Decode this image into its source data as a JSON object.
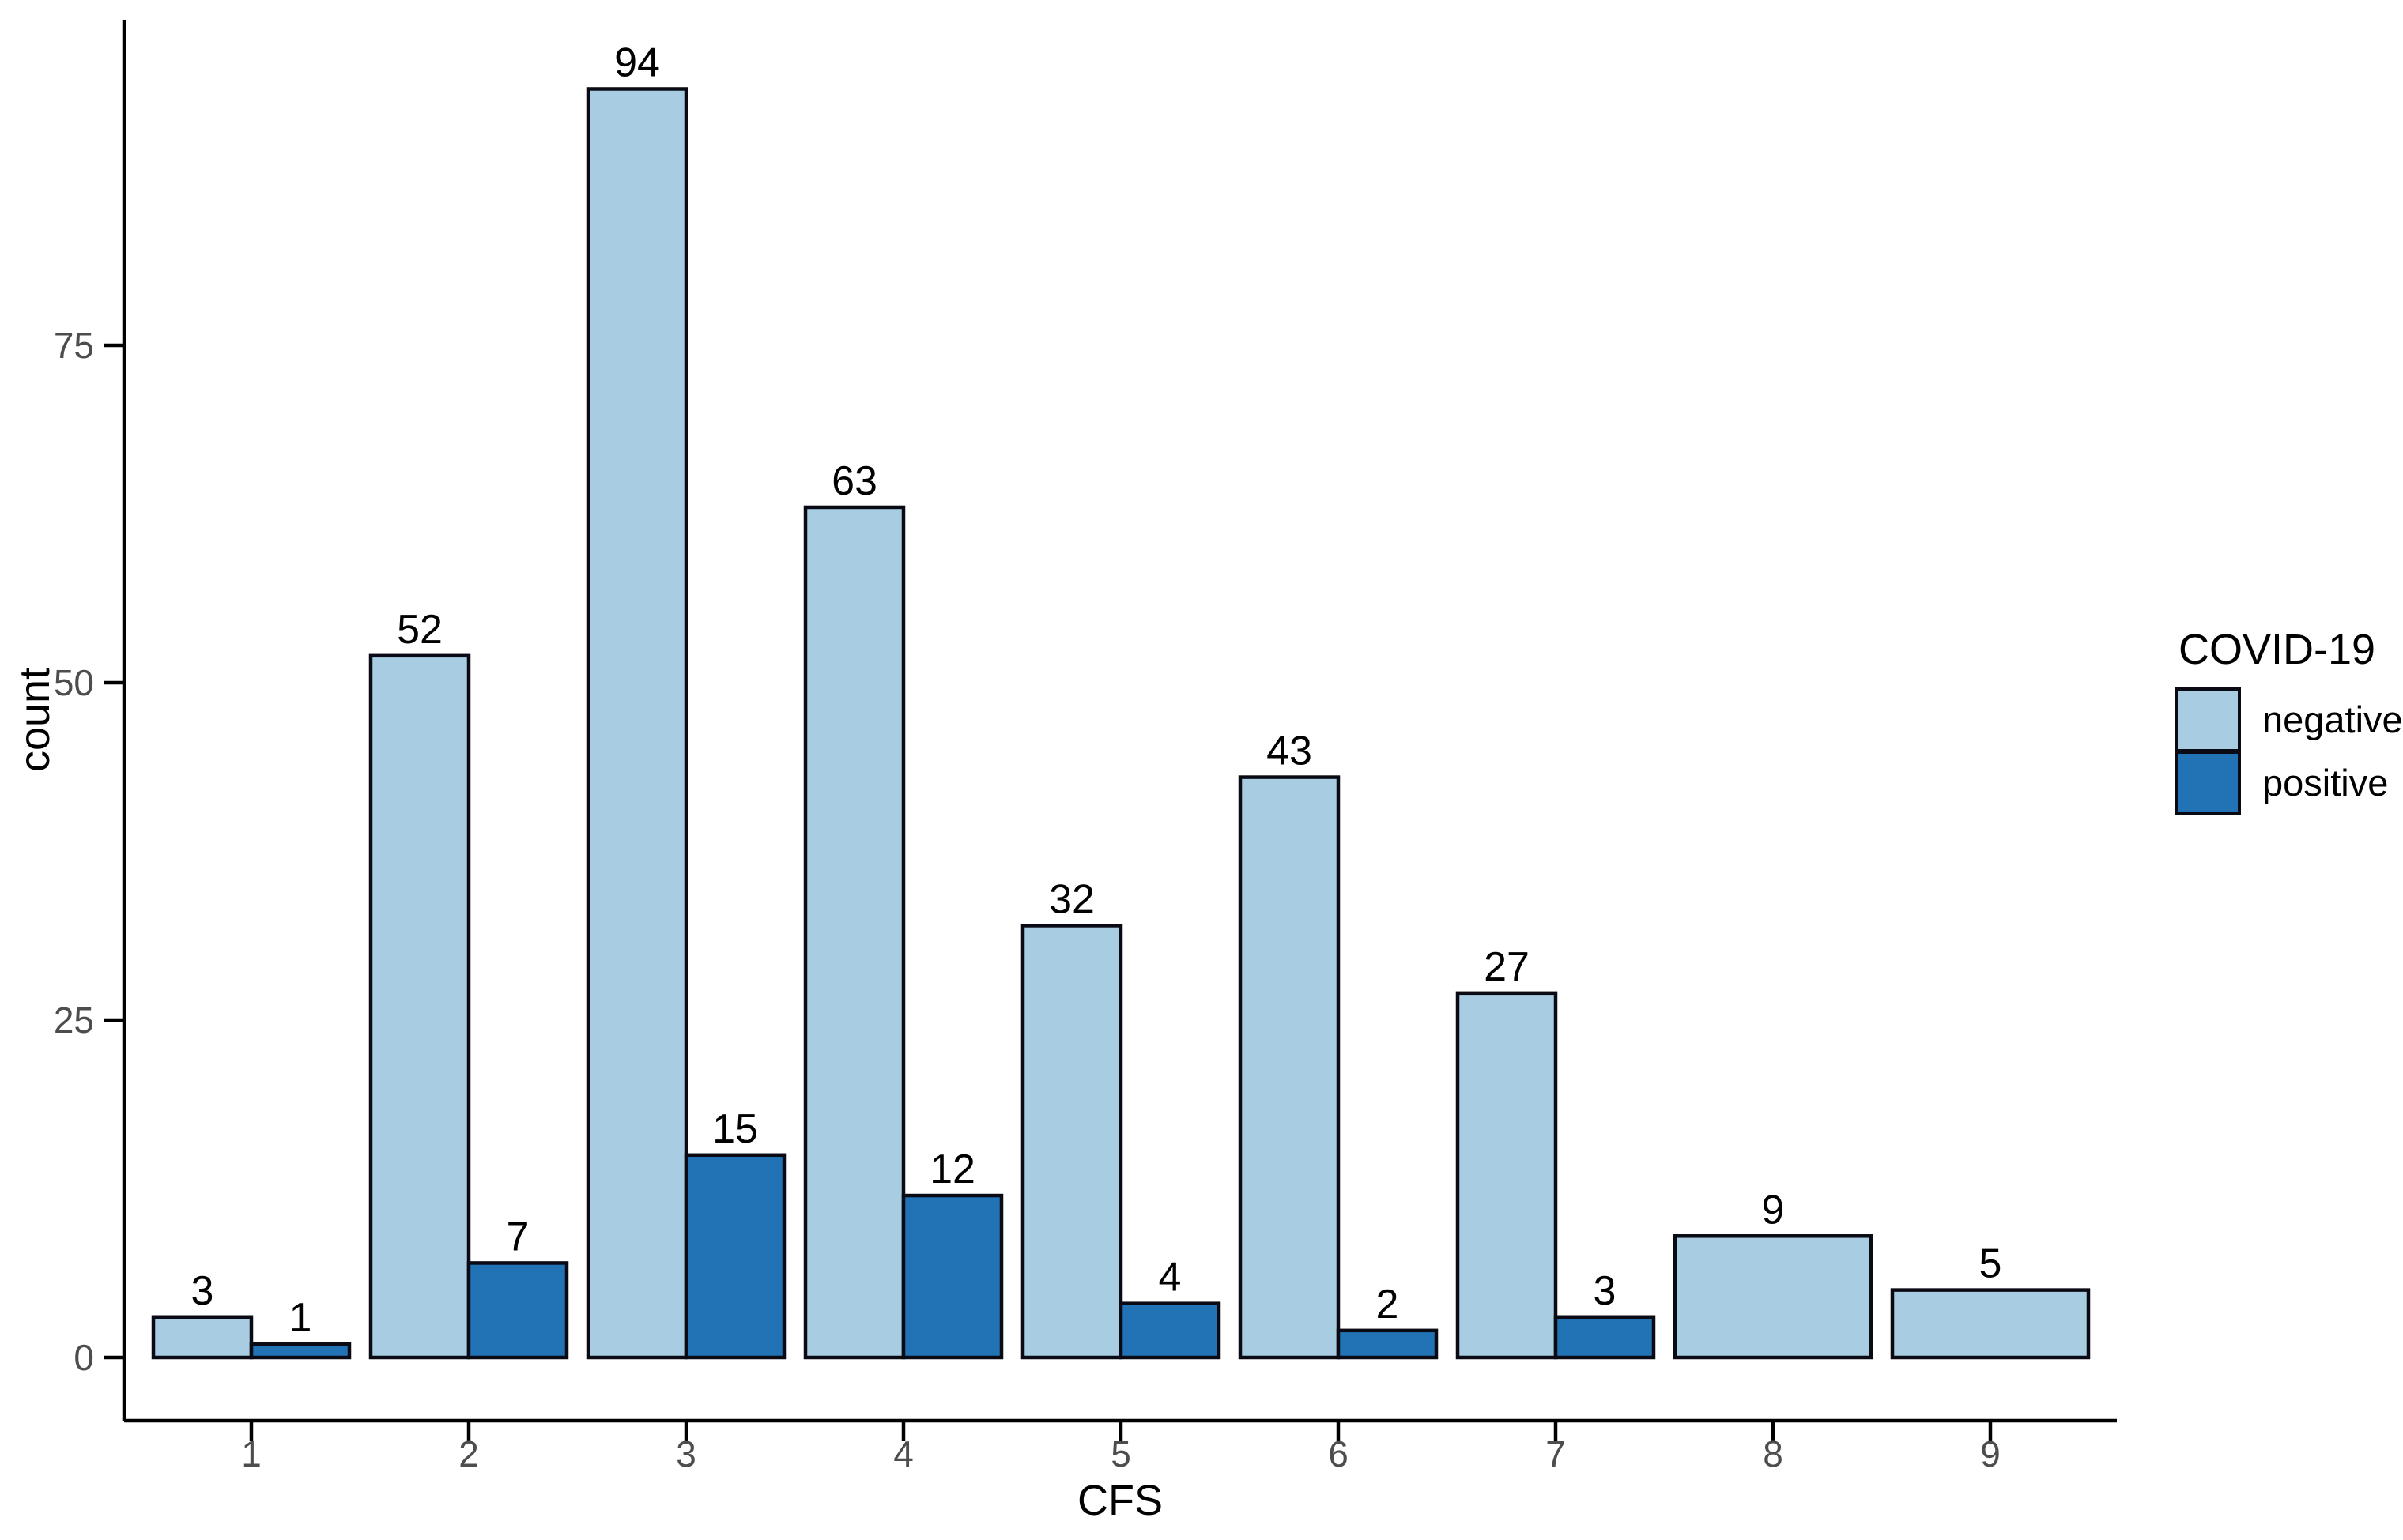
{
  "chart_data": {
    "type": "bar",
    "title": "",
    "xlabel": "CFS",
    "ylabel": "count",
    "categories": [
      "1",
      "2",
      "3",
      "4",
      "5",
      "6",
      "7",
      "8",
      "9"
    ],
    "series": [
      {
        "name": "negative",
        "color": "#A8CDE2",
        "values": [
          3,
          52,
          94,
          63,
          32,
          43,
          27,
          9,
          5
        ]
      },
      {
        "name": "positive",
        "color": "#2173B5",
        "values": [
          1,
          7,
          15,
          12,
          4,
          2,
          3,
          null,
          null
        ]
      }
    ],
    "bar_value_labels": {
      "negative": [
        "3",
        "52",
        "94",
        "63",
        "32",
        "43",
        "27",
        "9",
        "5"
      ],
      "positive": [
        "1",
        "7",
        "15",
        "12",
        "4",
        "2",
        "3",
        "",
        ""
      ]
    },
    "yticks": [
      0,
      25,
      50,
      75
    ],
    "ylim": [
      0,
      98.7
    ],
    "grid": false,
    "legend": {
      "title": "COVID-19",
      "position": "right",
      "entries": [
        "negative",
        "positive"
      ]
    },
    "colors": {
      "negative": "#A8CDE2",
      "positive": "#2173B5",
      "bar_border": "#0a0a14",
      "axis": "#000000",
      "tick_label": "#4d4d4d"
    }
  }
}
